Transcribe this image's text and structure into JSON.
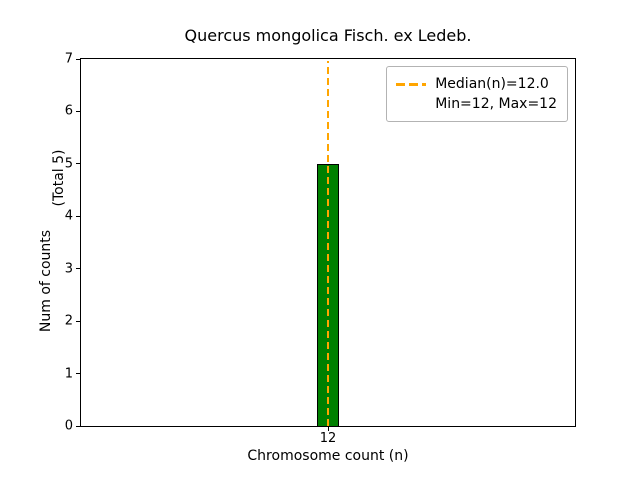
{
  "chart_data": {
    "type": "bar",
    "title": "Quercus mongolica Fisch. ex Ledeb.",
    "xlabel": "Chromosome count (n)",
    "ylabel": "Num of counts",
    "ylabel_secondary": "(Total 5)",
    "categories": [
      "12"
    ],
    "values": [
      5
    ],
    "ylim": [
      0,
      7
    ],
    "yticks": [
      0,
      1,
      2,
      3,
      4,
      5,
      6,
      7
    ],
    "grid": false,
    "bar_color": "#008000",
    "bar_edge_color": "#000000",
    "median_line": {
      "value": 12.0,
      "color": "#ffa500",
      "style": "dashed"
    },
    "legend": {
      "position": "upper right",
      "entries": [
        {
          "label": "Median(n)=12.0",
          "symbol": "dashed-line",
          "color": "#ffa500"
        },
        {
          "label": "Min=12, Max=12",
          "symbol": "none"
        }
      ]
    }
  }
}
